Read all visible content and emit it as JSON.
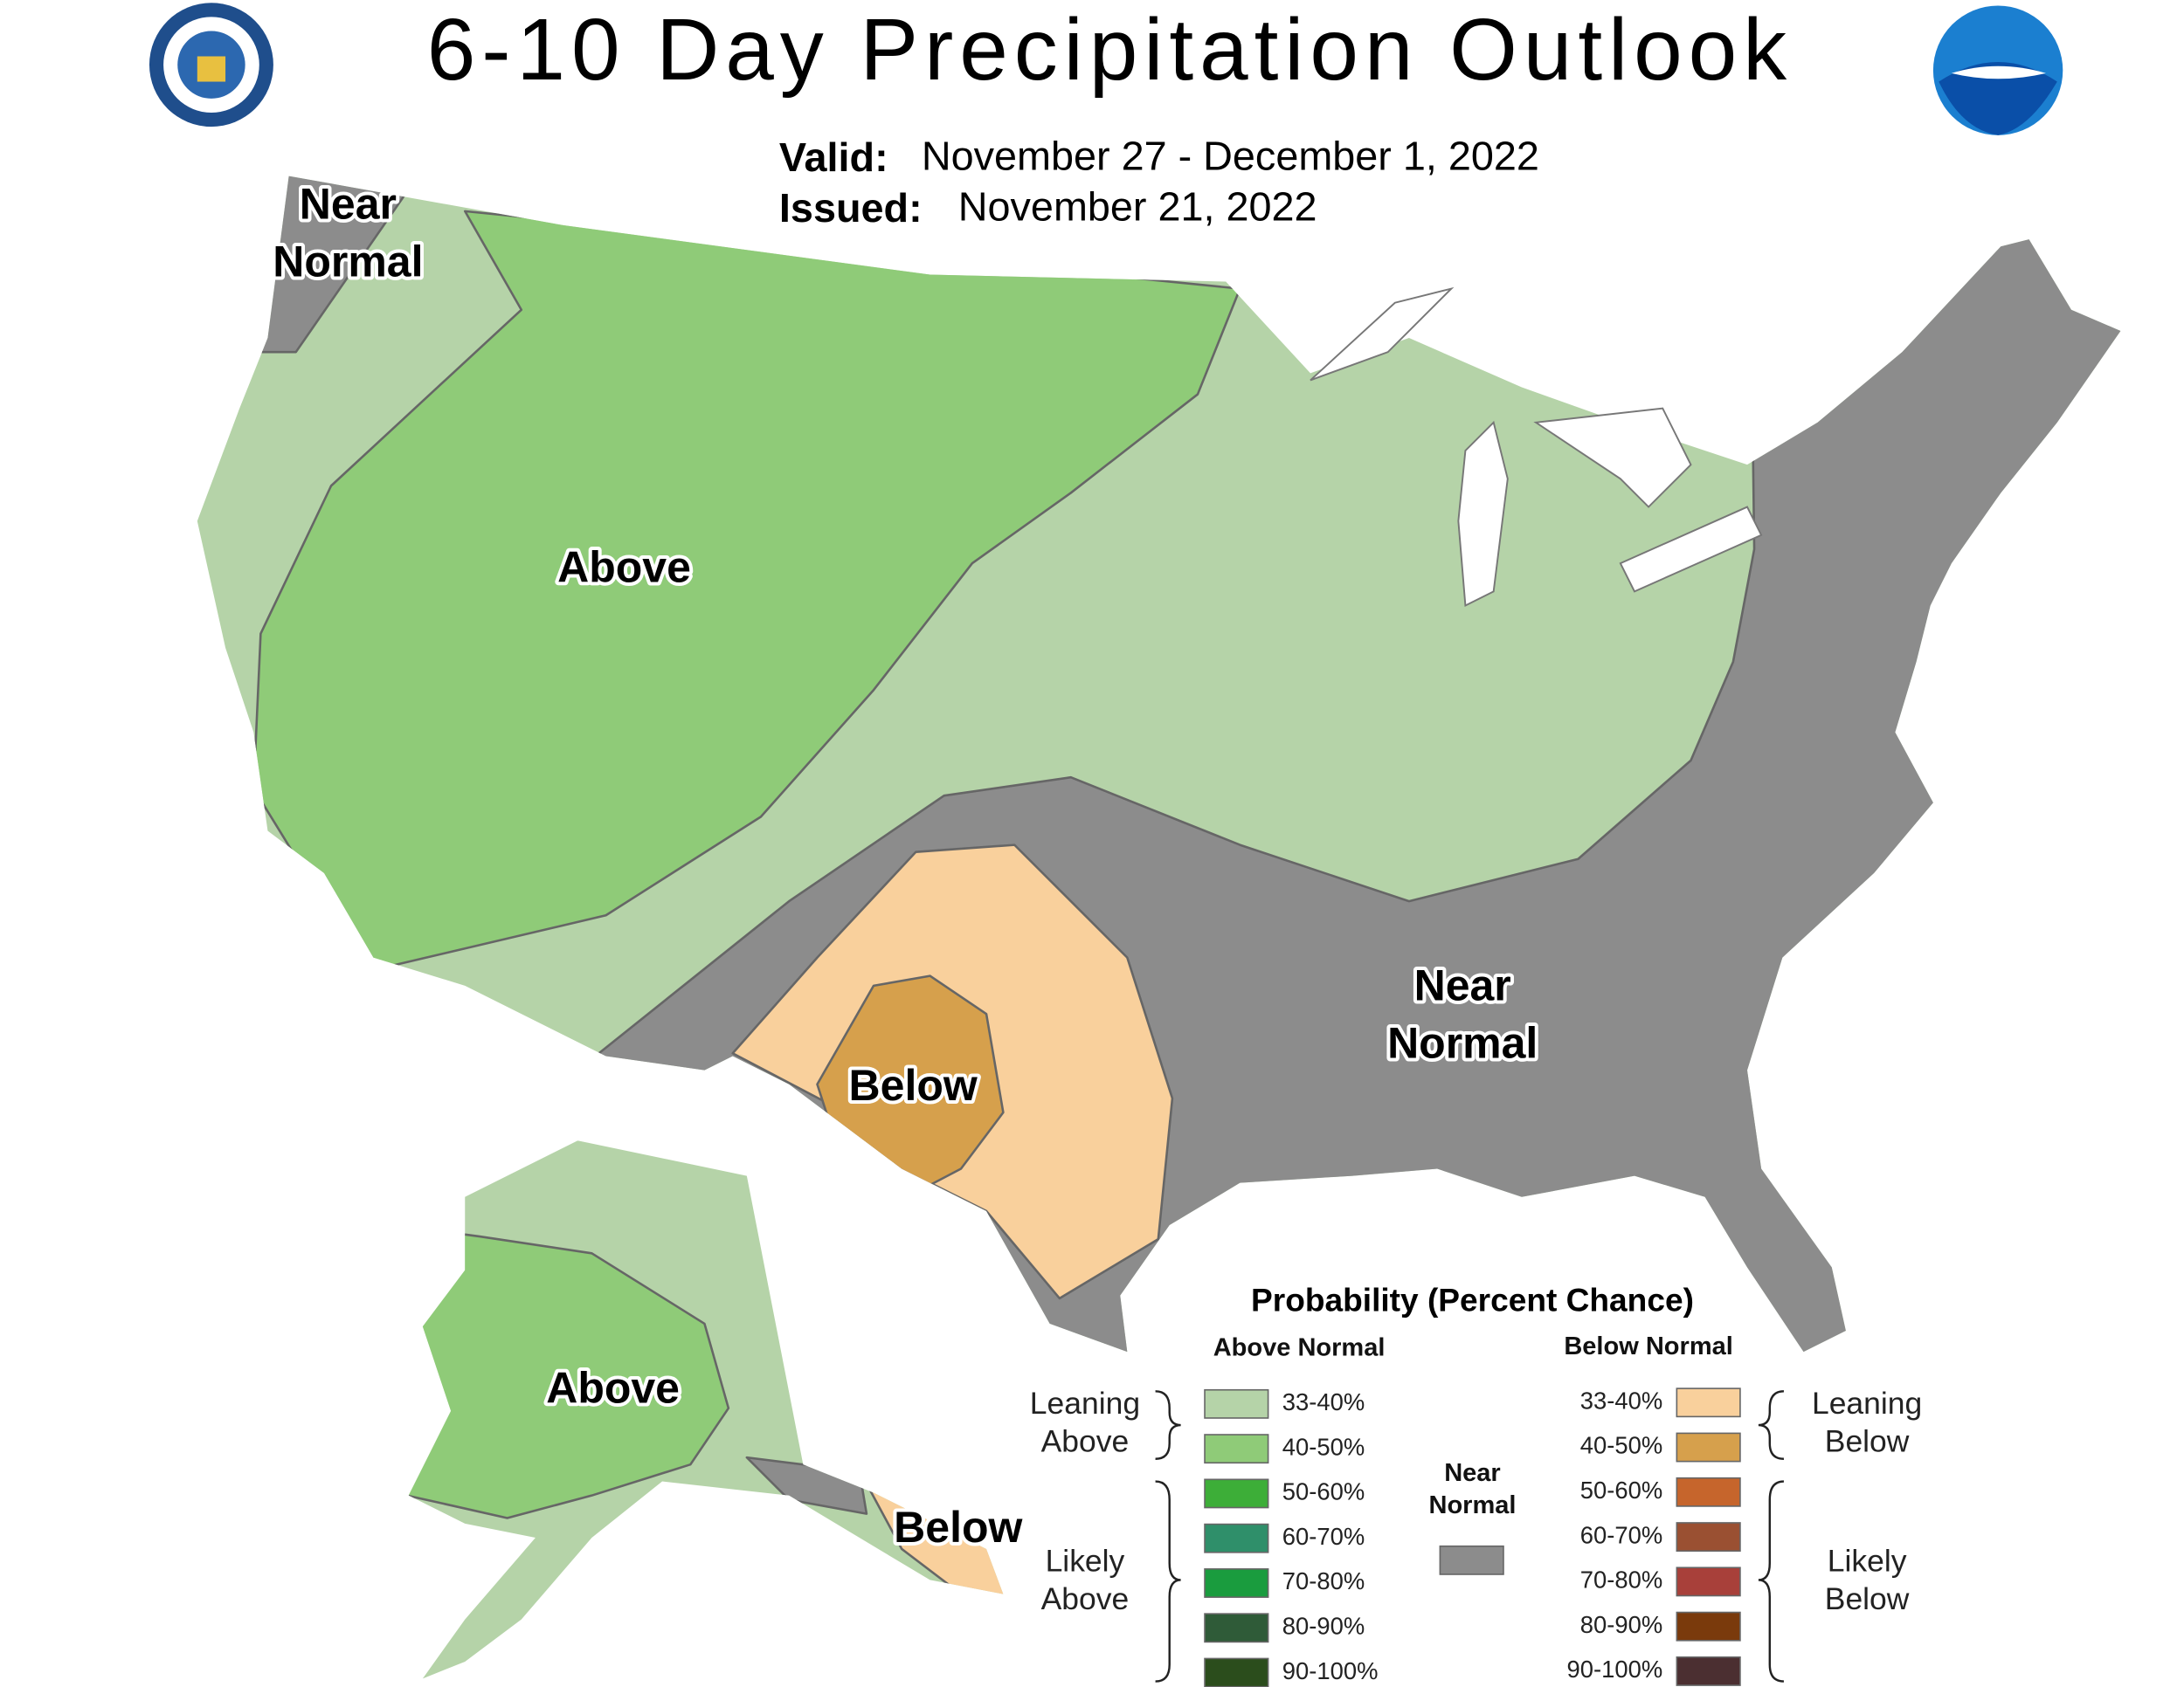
{
  "header": {
    "title": "6-10 Day Precipitation Outlook",
    "valid_label": "Valid:",
    "valid": "November 27 - December 1, 2022",
    "issued_label": "Issued:",
    "issued": "November 21, 2022"
  },
  "map_labels": [
    {
      "lines": [
        "Near",
        "Normal"
      ]
    },
    {
      "lines": [
        "Above"
      ]
    },
    {
      "lines": [
        "Near",
        "Normal"
      ]
    },
    {
      "lines": [
        "Below"
      ]
    },
    {
      "lines": [
        "Above"
      ]
    },
    {
      "lines": [
        "Below"
      ]
    }
  ],
  "legend": {
    "title": "Probability (Percent Chance)",
    "above_header": "Above Normal",
    "below_header": "Below Normal",
    "above_items": [
      {
        "label": "33-40%",
        "color": "#b5d3a8"
      },
      {
        "label": "40-50%",
        "color": "#8fcb78"
      },
      {
        "label": "50-60%",
        "color": "#3dae38"
      },
      {
        "label": "60-70%",
        "color": "#2f8f6a"
      },
      {
        "label": "70-80%",
        "color": "#1a9c3e"
      },
      {
        "label": "80-90%",
        "color": "#2f5b38"
      },
      {
        "label": "90-100%",
        "color": "#2b4d1c"
      }
    ],
    "below_items": [
      {
        "label": "33-40%",
        "color": "#f9d09c"
      },
      {
        "label": "40-50%",
        "color": "#d6a04c"
      },
      {
        "label": "50-60%",
        "color": "#c6652c"
      },
      {
        "label": "60-70%",
        "color": "#9a5032"
      },
      {
        "label": "70-80%",
        "color": "#a8403a"
      },
      {
        "label": "80-90%",
        "color": "#7a3a0c"
      },
      {
        "label": "90-100%",
        "color": "#4b2f31"
      }
    ],
    "near_normal": {
      "lines": [
        "Near",
        "Normal"
      ],
      "color": "#8c8c8c"
    },
    "leaning_above": [
      "Leaning",
      "Above"
    ],
    "likely_above": [
      "Likely",
      "Above"
    ],
    "leaning_below": [
      "Leaning",
      "Below"
    ],
    "likely_below": [
      "Likely",
      "Below"
    ]
  }
}
